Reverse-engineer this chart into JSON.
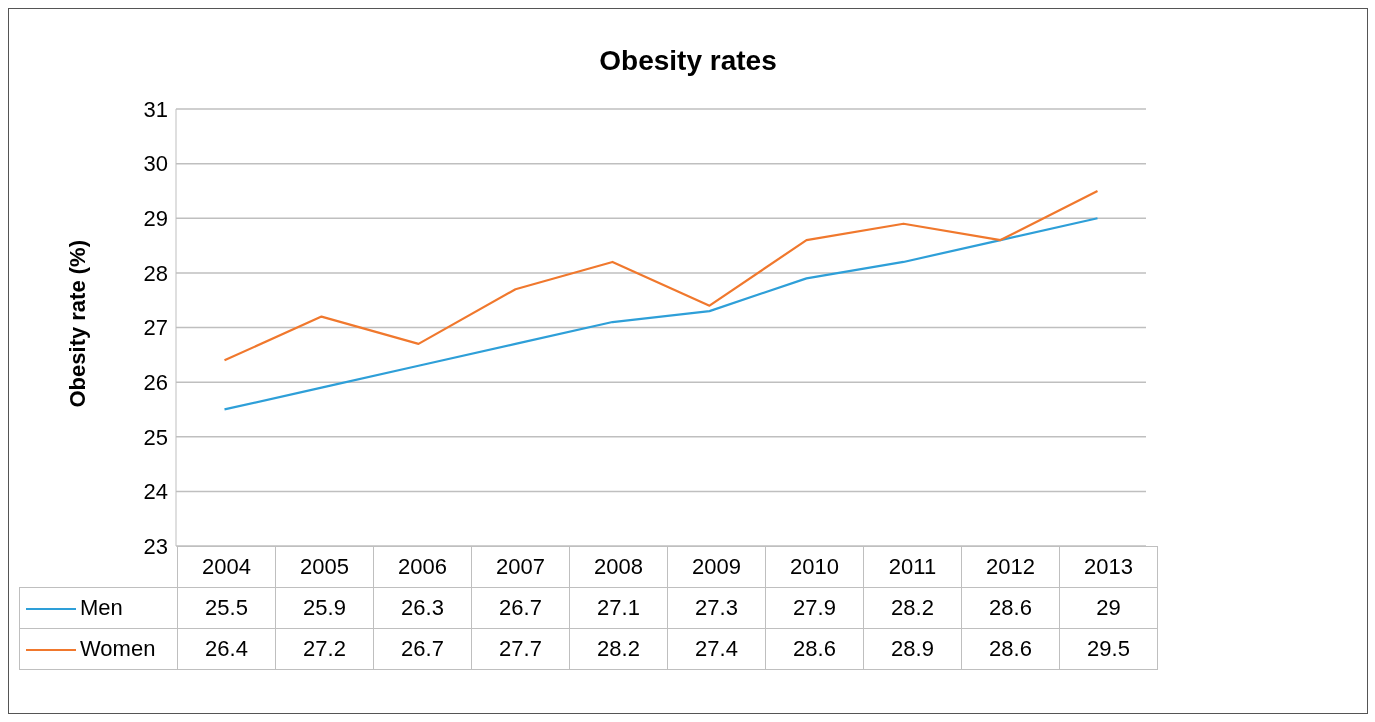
{
  "chart_data": {
    "type": "line",
    "title": "Obesity rates",
    "ylabel": "Obesity rate (%)",
    "categories": [
      "2004",
      "2005",
      "2006",
      "2007",
      "2008",
      "2009",
      "2010",
      "2011",
      "2012",
      "2013"
    ],
    "series": [
      {
        "name": "Men",
        "color": "#2e9fd8",
        "values": [
          25.5,
          25.9,
          26.3,
          26.7,
          27.1,
          27.3,
          27.9,
          28.2,
          28.6,
          29
        ]
      },
      {
        "name": "Women",
        "color": "#f0782d",
        "values": [
          26.4,
          27.2,
          26.7,
          27.7,
          28.2,
          27.4,
          28.6,
          28.9,
          28.6,
          29.5
        ]
      }
    ],
    "ylim": [
      23,
      31
    ],
    "yticks": [
      23,
      24,
      25,
      26,
      27,
      28,
      29,
      30,
      31
    ],
    "grid": "y",
    "legend": "bottom left",
    "data_labels": true,
    "marker": "none",
    "line_style": "solid"
  }
}
